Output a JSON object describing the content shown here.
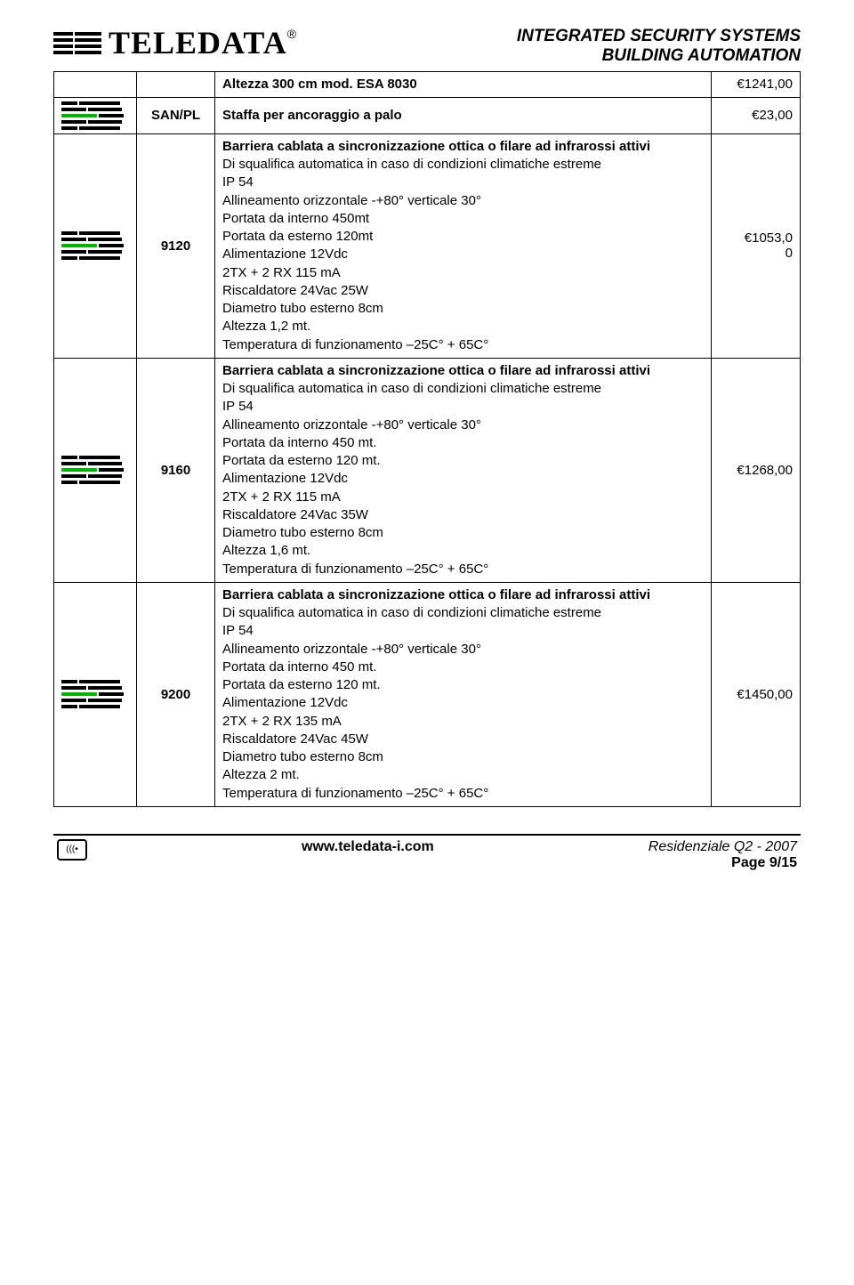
{
  "header": {
    "brand": "TELEDATA",
    "reg": "®",
    "right_line1": "INTEGRATED SECURITY SYSTEMS",
    "right_line2": "BUILDING AUTOMATION"
  },
  "rows": [
    {
      "code": "",
      "desc_title": "Altezza 300 cm mod. ESA 8030",
      "desc_body": "",
      "price": "€1241,00",
      "show_icon": false
    },
    {
      "code": "SAN/PL",
      "desc_title": "Staffa per ancoraggio a palo",
      "desc_body": "",
      "price": "€23,00",
      "show_icon": true
    },
    {
      "code": "9120",
      "desc_title": "Barriera cablata a sincronizzazione ottica o filare ad infrarossi attivi",
      "desc_body": "Di squalifica automatica in caso di condizioni climatiche estreme\nIP 54\nAllineamento orizzontale -+80° verticale 30°\nPortata da interno 450mt\nPortata da esterno 120mt\nAlimentazione 12Vdc\n2TX + 2 RX 115 mA\nRiscaldatore 24Vac 25W\nDiametro tubo esterno 8cm\nAltezza 1,2 mt.\nTemperatura di funzionamento –25C° +  65C°",
      "price": "€1053,0\n0",
      "show_icon": true
    },
    {
      "code": "9160",
      "desc_title": "Barriera cablata a sincronizzazione ottica o filare ad infrarossi attivi",
      "desc_body": "Di squalifica automatica in caso di condizioni climatiche estreme\nIP 54\nAllineamento orizzontale -+80° verticale 30°\nPortata da interno 450 mt.\nPortata da esterno 120 mt.\nAlimentazione 12Vdc\n2TX + 2 RX 115 mA\nRiscaldatore 24Vac 35W\nDiametro tubo esterno 8cm\nAltezza 1,6 mt.\nTemperatura di funzionamento –25C° +  65C°",
      "price": "€1268,00",
      "show_icon": true
    },
    {
      "code": "9200",
      "desc_title": "Barriera cablata a sincronizzazione ottica o filare ad infrarossi attivi",
      "desc_body": "Di squalifica automatica in caso di condizioni climatiche estreme\nIP 54\nAllineamento orizzontale -+80° verticale 30°\nPortata da interno 450 mt.\nPortata da esterno 120 mt.\nAlimentazione 12Vdc\n2TX + 2 RX 135 mA\nRiscaldatore 24Vac 45W\nDiametro tubo esterno 8cm\nAltezza 2  mt.\nTemperatura di funzionamento –25C° +  65C°",
      "price": "€1450,00",
      "show_icon": true
    }
  ],
  "footer": {
    "website": "www.teledata-i.com",
    "edition": "Residenziale  Q2 - 2007",
    "page": "Page  9/15"
  },
  "colors": {
    "accent_green": "#00b400",
    "text": "#000000",
    "background": "#ffffff"
  }
}
